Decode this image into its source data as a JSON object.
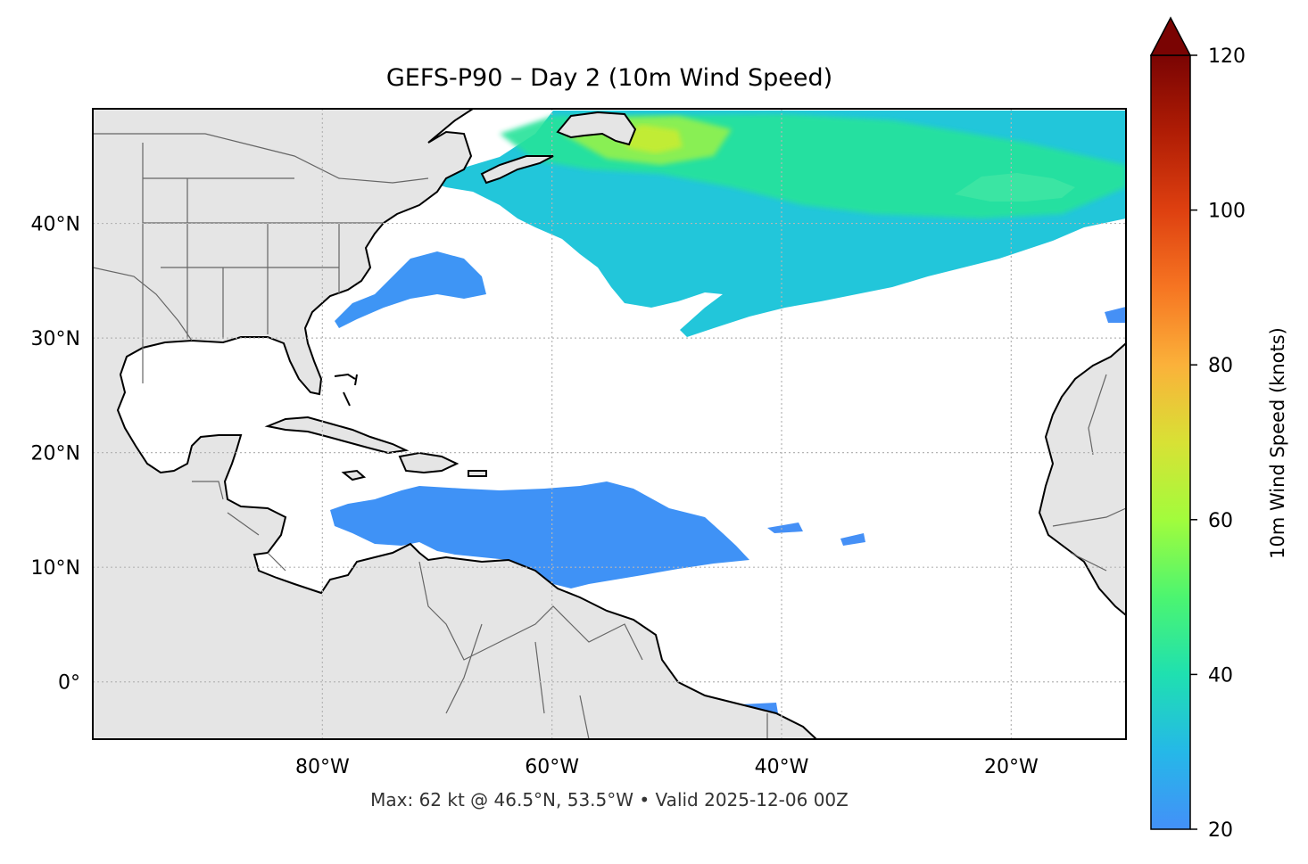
{
  "figure": {
    "title": "GEFS-P90 – Day 2 (10m Wind Speed)",
    "footnote": "Max: 62 kt @ 46.5°N, 53.5°W • Valid 2025-12-06 00Z"
  },
  "map": {
    "projection": "PlateCarree",
    "extent": {
      "lon": [
        -100,
        -10
      ],
      "lat": [
        -5,
        50
      ]
    },
    "gridlines": "dotted",
    "land_color": "#e5e5e5",
    "coast_color": "#000000",
    "border_color": "#666666",
    "lon_ticks": [
      {
        "value": -80,
        "label": "80°W"
      },
      {
        "value": -60,
        "label": "60°W"
      },
      {
        "value": -40,
        "label": "40°W"
      },
      {
        "value": -20,
        "label": "20°W"
      }
    ],
    "lat_ticks": [
      {
        "value": 40,
        "label": "40°N"
      },
      {
        "value": 30,
        "label": "30°N"
      },
      {
        "value": 20,
        "label": "20°N"
      },
      {
        "value": 10,
        "label": "10°N"
      },
      {
        "value": 0,
        "label": "0°"
      }
    ]
  },
  "colorbar": {
    "label": "10m Wind Speed (knots)",
    "min": 20,
    "max": 120,
    "extend": "max",
    "ticks": [
      {
        "value": 20,
        "label": "20"
      },
      {
        "value": 40,
        "label": "40"
      },
      {
        "value": 60,
        "label": "60"
      },
      {
        "value": 80,
        "label": "80"
      },
      {
        "value": 100,
        "label": "100"
      },
      {
        "value": 120,
        "label": "120"
      }
    ],
    "colormap": [
      "#4390f8",
      "#25b8e8",
      "#1fe0b0",
      "#4cf570",
      "#a2fc3c",
      "#d8e135",
      "#fbb13a",
      "#f67522",
      "#de4010",
      "#b01d05",
      "#7a0403"
    ],
    "overflow_color": "#7a0403"
  },
  "chart_data": {
    "type": "heatmap",
    "variable": "10m Wind Speed (knots)",
    "threshold": 20,
    "max": {
      "value": 62,
      "lat": 46.5,
      "lon": -53.5
    },
    "valid": "2025-12-06 00Z"
  }
}
